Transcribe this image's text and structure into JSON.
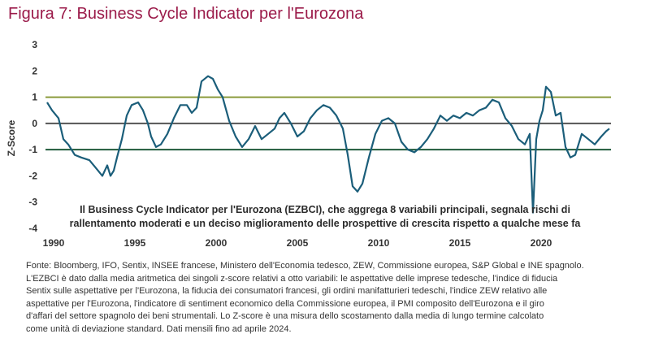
{
  "header": {
    "title": "Figura 7: Business Cycle Indicator per l'Eurozona"
  },
  "chart_data": {
    "type": "line",
    "title": "Figura 7: Business Cycle Indicator per l'Eurozona",
    "ylabel": "Z-Score",
    "ylim": [
      -4,
      3
    ],
    "xlim": [
      1989.5,
      2024.3
    ],
    "yticks": [
      "3",
      "2",
      "1",
      "0",
      "-1",
      "-2",
      "-3",
      "-4"
    ],
    "xticks": [
      "1990",
      "1995",
      "2000",
      "2005",
      "2010",
      "2015",
      "2020"
    ],
    "reference_lines": [
      {
        "y": 1,
        "color": "#8a9a3a"
      },
      {
        "y": 0,
        "color": "#555555"
      },
      {
        "y": -1,
        "color": "#1f5a3a"
      }
    ],
    "annotation": [
      "Il Business Cycle Indicator per l'Eurozona (EZBCI), che aggrega 8 variabili principali, segnala rischi di",
      "rallentamento moderati e un deciso miglioramento delle prospettive di crescita rispetto a qualche mese fa"
    ],
    "series": [
      {
        "color": "#1b5e7a",
        "points": [
          [
            1989.6,
            0.8
          ],
          [
            1989.9,
            0.5
          ],
          [
            1990.3,
            0.2
          ],
          [
            1990.6,
            -0.6
          ],
          [
            1990.9,
            -0.8
          ],
          [
            1991.3,
            -1.2
          ],
          [
            1991.7,
            -1.3
          ],
          [
            1992.2,
            -1.4
          ],
          [
            1992.6,
            -1.7
          ],
          [
            1993.0,
            -2.0
          ],
          [
            1993.3,
            -1.6
          ],
          [
            1993.5,
            -2.0
          ],
          [
            1993.7,
            -1.8
          ],
          [
            1993.9,
            -1.3
          ],
          [
            1994.2,
            -0.6
          ],
          [
            1994.5,
            0.3
          ],
          [
            1994.8,
            0.7
          ],
          [
            1995.2,
            0.8
          ],
          [
            1995.5,
            0.5
          ],
          [
            1995.8,
            0.0
          ],
          [
            1996.0,
            -0.5
          ],
          [
            1996.3,
            -0.9
          ],
          [
            1996.6,
            -0.8
          ],
          [
            1997.0,
            -0.4
          ],
          [
            1997.4,
            0.2
          ],
          [
            1997.8,
            0.7
          ],
          [
            1998.2,
            0.7
          ],
          [
            1998.5,
            0.4
          ],
          [
            1998.8,
            0.6
          ],
          [
            1999.1,
            1.6
          ],
          [
            1999.5,
            1.8
          ],
          [
            1999.8,
            1.7
          ],
          [
            2000.1,
            1.3
          ],
          [
            2000.4,
            1.0
          ],
          [
            2000.8,
            0.1
          ],
          [
            2001.2,
            -0.5
          ],
          [
            2001.6,
            -0.9
          ],
          [
            2002.0,
            -0.6
          ],
          [
            2002.4,
            -0.1
          ],
          [
            2002.8,
            -0.6
          ],
          [
            2003.2,
            -0.4
          ],
          [
            2003.6,
            -0.2
          ],
          [
            2003.9,
            0.2
          ],
          [
            2004.2,
            0.4
          ],
          [
            2004.6,
            0.0
          ],
          [
            2005.0,
            -0.5
          ],
          [
            2005.4,
            -0.3
          ],
          [
            2005.8,
            0.2
          ],
          [
            2006.2,
            0.5
          ],
          [
            2006.6,
            0.7
          ],
          [
            2007.0,
            0.6
          ],
          [
            2007.4,
            0.3
          ],
          [
            2007.8,
            -0.2
          ],
          [
            2008.1,
            -1.2
          ],
          [
            2008.4,
            -2.4
          ],
          [
            2008.7,
            -2.6
          ],
          [
            2009.0,
            -2.3
          ],
          [
            2009.4,
            -1.3
          ],
          [
            2009.8,
            -0.4
          ],
          [
            2010.2,
            0.1
          ],
          [
            2010.6,
            0.2
          ],
          [
            2011.0,
            0.0
          ],
          [
            2011.4,
            -0.7
          ],
          [
            2011.8,
            -1.0
          ],
          [
            2012.2,
            -1.1
          ],
          [
            2012.6,
            -0.9
          ],
          [
            2013.0,
            -0.6
          ],
          [
            2013.4,
            -0.2
          ],
          [
            2013.8,
            0.3
          ],
          [
            2014.2,
            0.1
          ],
          [
            2014.6,
            0.3
          ],
          [
            2015.0,
            0.2
          ],
          [
            2015.4,
            0.4
          ],
          [
            2015.8,
            0.3
          ],
          [
            2016.2,
            0.5
          ],
          [
            2016.6,
            0.6
          ],
          [
            2017.0,
            0.9
          ],
          [
            2017.4,
            0.8
          ],
          [
            2017.8,
            0.2
          ],
          [
            2018.2,
            -0.1
          ],
          [
            2018.6,
            -0.6
          ],
          [
            2019.0,
            -0.8
          ],
          [
            2019.3,
            -0.4
          ],
          [
            2019.5,
            -3.4
          ],
          [
            2019.7,
            -0.6
          ],
          [
            2019.9,
            0.1
          ],
          [
            2020.1,
            0.5
          ],
          [
            2020.3,
            1.4
          ],
          [
            2020.6,
            1.2
          ],
          [
            2020.9,
            0.3
          ],
          [
            2021.2,
            0.4
          ],
          [
            2021.5,
            -0.9
          ],
          [
            2021.8,
            -1.3
          ],
          [
            2022.1,
            -1.2
          ],
          [
            2022.5,
            -0.4
          ],
          [
            2022.9,
            -0.6
          ],
          [
            2023.3,
            -0.8
          ],
          [
            2023.7,
            -0.5
          ],
          [
            2024.0,
            -0.3
          ],
          [
            2024.2,
            -0.2
          ]
        ]
      }
    ]
  },
  "footer": {
    "lines": [
      "Fonte: Bloomberg, IFO, Sentix, INSEE francese, Ministero dell'Economia tedesco, ZEW, Commissione europea, S&P Global e INE spagnolo.",
      "L'EZBCI è dato dalla media aritmetica dei singoli z-score relativi a otto variabili: le aspettative delle imprese tedesche, l'indice di fiducia",
      "Sentix sulle aspettative per l'Eurozona, la fiducia dei consumatori francesi, gli ordini manifatturieri tedeschi, l'indice ZEW relativo alle",
      "aspettative per l'Eurozona, l'indicatore di sentiment economico della Commissione europea, il PMI composito dell'Eurozona e il giro",
      "d'affari del settore spagnolo dei beni strumentali. Lo Z-score è una misura dello scostamento dalla media di lungo termine calcolato",
      "come unità di deviazione standard. Dati mensili fino ad aprile 2024."
    ]
  }
}
